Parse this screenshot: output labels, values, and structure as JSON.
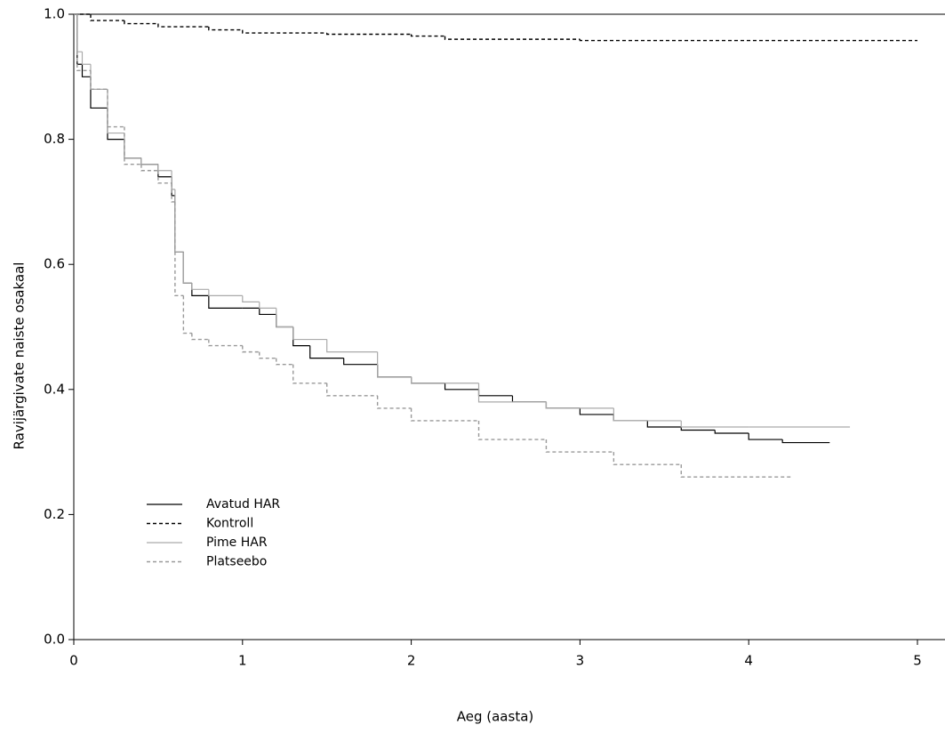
{
  "chart_data": {
    "type": "step",
    "xlabel": "Aeg (aasta)",
    "ylabel": "Ravijärgivate naiste osakaal",
    "xlim": [
      0,
      5.15
    ],
    "ylim": [
      0,
      1
    ],
    "xticks": [
      0,
      1,
      2,
      3,
      4,
      5
    ],
    "yticks": [
      {
        "value": 0,
        "label": "0.0"
      },
      0.2,
      0.4,
      0.6,
      0.8,
      {
        "value": 1,
        "label": "1.0"
      }
    ],
    "legend": "lower left",
    "series": [
      {
        "name": "Avatud HAR",
        "color": "#000000",
        "dashed": false,
        "x": [
          0,
          0.02,
          0.05,
          0.1,
          0.2,
          0.3,
          0.4,
          0.5,
          0.58,
          0.6,
          0.65,
          0.7,
          0.8,
          1.0,
          1.1,
          1.2,
          1.3,
          1.4,
          1.6,
          1.8,
          2.0,
          2.2,
          2.4,
          2.6,
          2.8,
          3.0,
          3.2,
          3.4,
          3.6,
          3.8,
          4.0,
          4.2,
          4.48
        ],
        "values": [
          1.0,
          0.92,
          0.9,
          0.85,
          0.8,
          0.77,
          0.76,
          0.74,
          0.71,
          0.62,
          0.57,
          0.55,
          0.53,
          0.53,
          0.52,
          0.5,
          0.47,
          0.45,
          0.44,
          0.42,
          0.41,
          0.4,
          0.39,
          0.38,
          0.37,
          0.36,
          0.35,
          0.34,
          0.335,
          0.33,
          0.32,
          0.315,
          0.315
        ]
      },
      {
        "name": "Kontroll",
        "color": "#000000",
        "dashed": true,
        "x": [
          0,
          0.1,
          0.3,
          0.5,
          0.8,
          1.0,
          1.5,
          2.0,
          2.2,
          3.0,
          5.0
        ],
        "values": [
          1.0,
          0.99,
          0.985,
          0.98,
          0.975,
          0.97,
          0.968,
          0.965,
          0.96,
          0.958,
          0.958
        ]
      },
      {
        "name": "Pime HAR",
        "color": "#aaaaaa",
        "dashed": false,
        "x": [
          0,
          0.02,
          0.05,
          0.1,
          0.2,
          0.3,
          0.4,
          0.5,
          0.58,
          0.6,
          0.65,
          0.7,
          0.8,
          1.0,
          1.1,
          1.2,
          1.3,
          1.5,
          1.8,
          2.0,
          2.4,
          2.8,
          3.2,
          3.6,
          4.0,
          4.6
        ],
        "values": [
          1.0,
          0.94,
          0.92,
          0.88,
          0.81,
          0.77,
          0.76,
          0.75,
          0.72,
          0.62,
          0.57,
          0.56,
          0.55,
          0.54,
          0.53,
          0.5,
          0.48,
          0.46,
          0.42,
          0.41,
          0.38,
          0.37,
          0.35,
          0.34,
          0.34,
          0.34
        ]
      },
      {
        "name": "Platseebo",
        "color": "#999999",
        "dashed": true,
        "x": [
          0,
          0.02,
          0.1,
          0.2,
          0.3,
          0.4,
          0.5,
          0.58,
          0.6,
          0.65,
          0.7,
          0.8,
          1.0,
          1.1,
          1.2,
          1.3,
          1.5,
          1.8,
          2.0,
          2.4,
          2.8,
          3.2,
          3.6,
          4.25
        ],
        "values": [
          1.0,
          0.91,
          0.88,
          0.82,
          0.76,
          0.75,
          0.73,
          0.7,
          0.55,
          0.49,
          0.48,
          0.47,
          0.46,
          0.45,
          0.44,
          0.41,
          0.39,
          0.37,
          0.35,
          0.32,
          0.3,
          0.28,
          0.26,
          0.26
        ]
      }
    ]
  }
}
